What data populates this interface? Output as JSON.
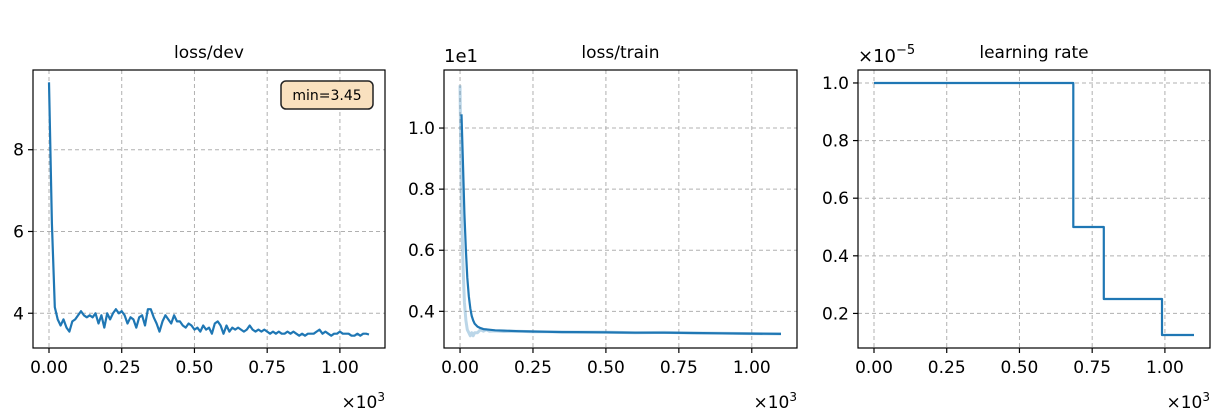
{
  "chart_data": [
    {
      "type": "line",
      "title": "loss/dev",
      "xlabel": "",
      "ylabel": "",
      "x_multiplier_label": "×10",
      "x_multiplier_exp": "3",
      "x_ticks": [
        0,
        0.25,
        0.5,
        0.75,
        1.0
      ],
      "x_tick_labels": [
        "0.00",
        "0.25",
        "0.50",
        "0.75",
        "1.00"
      ],
      "y_ticks": [
        4,
        6,
        8
      ],
      "y_tick_labels": [
        "4",
        "6",
        "8"
      ],
      "xlim": [
        -0.055,
        1.155
      ],
      "ylim": [
        3.15,
        9.95
      ],
      "grid": true,
      "annotation": "min=3.45",
      "annotation_position": "top-right",
      "series": [
        {
          "color": "#1f77b4",
          "x": [
            0.0,
            0.01,
            0.02,
            0.03,
            0.04,
            0.05,
            0.06,
            0.07,
            0.08,
            0.09,
            0.1,
            0.11,
            0.12,
            0.13,
            0.14,
            0.15,
            0.16,
            0.17,
            0.18,
            0.19,
            0.2,
            0.21,
            0.22,
            0.23,
            0.24,
            0.25,
            0.26,
            0.27,
            0.28,
            0.29,
            0.3,
            0.31,
            0.32,
            0.33,
            0.34,
            0.35,
            0.36,
            0.37,
            0.38,
            0.39,
            0.4,
            0.41,
            0.42,
            0.43,
            0.44,
            0.45,
            0.46,
            0.47,
            0.48,
            0.49,
            0.5,
            0.51,
            0.52,
            0.53,
            0.54,
            0.55,
            0.56,
            0.57,
            0.58,
            0.59,
            0.6,
            0.61,
            0.62,
            0.63,
            0.64,
            0.65,
            0.66,
            0.67,
            0.68,
            0.69,
            0.7,
            0.71,
            0.72,
            0.73,
            0.74,
            0.75,
            0.76,
            0.77,
            0.78,
            0.79,
            0.8,
            0.81,
            0.82,
            0.83,
            0.84,
            0.85,
            0.86,
            0.87,
            0.88,
            0.89,
            0.9,
            0.91,
            0.92,
            0.93,
            0.94,
            0.95,
            0.96,
            0.97,
            0.98,
            0.99,
            1.0,
            1.01,
            1.02,
            1.03,
            1.04,
            1.05,
            1.06,
            1.07,
            1.08,
            1.09,
            1.1
          ],
          "y": [
            9.65,
            6.2,
            4.15,
            3.85,
            3.7,
            3.85,
            3.65,
            3.55,
            3.8,
            3.85,
            3.95,
            4.05,
            3.95,
            3.9,
            3.95,
            3.9,
            4.0,
            3.75,
            3.95,
            3.65,
            4.0,
            3.85,
            4.0,
            4.1,
            4.0,
            4.05,
            3.95,
            3.75,
            3.9,
            3.85,
            3.65,
            3.9,
            3.95,
            3.7,
            4.1,
            4.1,
            3.9,
            3.75,
            3.55,
            3.8,
            3.95,
            3.85,
            3.75,
            3.95,
            3.8,
            3.8,
            3.7,
            3.65,
            3.75,
            3.7,
            3.6,
            3.65,
            3.55,
            3.7,
            3.6,
            3.65,
            3.5,
            3.75,
            3.8,
            3.7,
            3.5,
            3.7,
            3.55,
            3.65,
            3.6,
            3.65,
            3.6,
            3.55,
            3.6,
            3.7,
            3.6,
            3.55,
            3.6,
            3.55,
            3.6,
            3.55,
            3.5,
            3.55,
            3.5,
            3.55,
            3.5,
            3.5,
            3.55,
            3.5,
            3.55,
            3.5,
            3.45,
            3.5,
            3.45,
            3.5,
            3.5,
            3.5,
            3.55,
            3.6,
            3.5,
            3.55,
            3.5,
            3.45,
            3.5,
            3.5,
            3.55,
            3.5,
            3.5,
            3.5,
            3.45,
            3.45,
            3.5,
            3.45,
            3.5,
            3.5,
            3.48
          ]
        }
      ]
    },
    {
      "type": "line",
      "title": "loss/train",
      "xlabel": "",
      "ylabel": "",
      "y_offset_label": "1e1",
      "x_multiplier_label": "×10",
      "x_multiplier_exp": "3",
      "x_ticks": [
        0,
        0.25,
        0.5,
        0.75,
        1.0
      ],
      "x_tick_labels": [
        "0.00",
        "0.25",
        "0.50",
        "0.75",
        "1.00"
      ],
      "y_ticks": [
        0.4,
        0.6,
        0.8,
        1.0
      ],
      "y_tick_labels": [
        "0.4",
        "0.6",
        "0.8",
        "1.0"
      ],
      "xlim": [
        -0.055,
        1.155
      ],
      "ylim": [
        0.28,
        1.19
      ],
      "grid": true,
      "series": [
        {
          "name": "",
          "style": "raw",
          "color": "#1f77b4",
          "opacity": 0.3,
          "x": [
            0.0,
            0.005,
            0.01,
            0.015,
            0.02,
            0.025,
            0.03,
            0.035,
            0.04,
            0.045,
            0.05,
            0.06,
            0.07,
            0.08,
            0.09,
            0.1,
            0.12,
            0.15,
            0.2,
            0.25,
            0.3,
            0.4,
            0.5,
            0.6,
            0.7,
            0.8,
            0.9,
            1.0,
            1.1
          ],
          "y": [
            1.14,
            0.75,
            0.55,
            0.43,
            0.37,
            0.34,
            0.33,
            0.32,
            0.33,
            0.32,
            0.33,
            0.33,
            0.34,
            0.335,
            0.34,
            0.335,
            0.336,
            0.334,
            0.335,
            0.333,
            0.333,
            0.332,
            0.332,
            0.33,
            0.331,
            0.329,
            0.328,
            0.327,
            0.326
          ]
        },
        {
          "name": "",
          "style": "smoothed",
          "color": "#1f77b4",
          "opacity": 1,
          "x": [
            0.005,
            0.01,
            0.015,
            0.02,
            0.025,
            0.03,
            0.035,
            0.04,
            0.045,
            0.05,
            0.06,
            0.07,
            0.08,
            0.1,
            0.12,
            0.15,
            0.2,
            0.25,
            0.3,
            0.35,
            0.4,
            0.5,
            0.6,
            0.7,
            0.8,
            0.9,
            1.0,
            1.1
          ],
          "y": [
            1.045,
            0.88,
            0.72,
            0.6,
            0.51,
            0.45,
            0.41,
            0.385,
            0.37,
            0.36,
            0.35,
            0.345,
            0.342,
            0.34,
            0.338,
            0.337,
            0.335,
            0.334,
            0.333,
            0.332,
            0.332,
            0.331,
            0.33,
            0.33,
            0.329,
            0.328,
            0.327,
            0.326
          ]
        }
      ]
    },
    {
      "type": "line",
      "title": "learning rate",
      "xlabel": "",
      "ylabel": "",
      "y_offset_label": "×10",
      "y_offset_exp": "−5",
      "x_multiplier_label": "×10",
      "x_multiplier_exp": "3",
      "x_ticks": [
        0,
        0.25,
        0.5,
        0.75,
        1.0
      ],
      "x_tick_labels": [
        "0.00",
        "0.25",
        "0.50",
        "0.75",
        "1.00"
      ],
      "y_ticks": [
        0.2,
        0.4,
        0.6,
        0.8,
        1.0
      ],
      "y_tick_labels": [
        "0.2",
        "0.4",
        "0.6",
        "0.8",
        "1.0"
      ],
      "xlim": [
        -0.055,
        1.155
      ],
      "ylim": [
        0.08,
        1.045
      ],
      "grid": true,
      "series": [
        {
          "color": "#1f77b4",
          "x": [
            0.0,
            0.685,
            0.685,
            0.79,
            0.79,
            0.99,
            0.99,
            1.1
          ],
          "y": [
            1.0,
            1.0,
            0.5,
            0.5,
            0.25,
            0.25,
            0.125,
            0.125
          ]
        }
      ]
    }
  ]
}
